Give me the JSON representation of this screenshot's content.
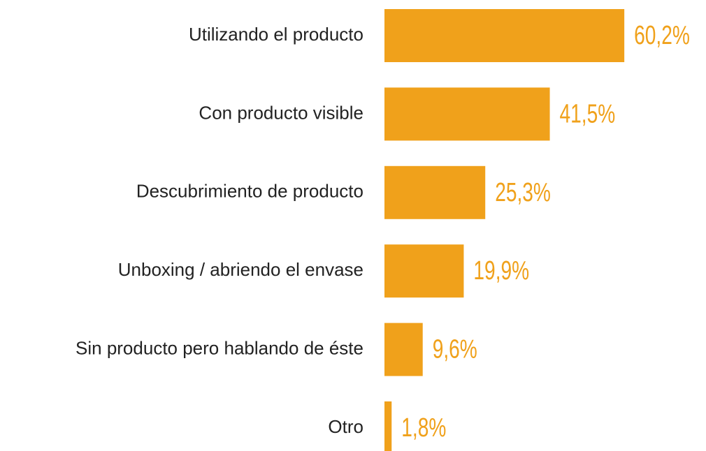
{
  "chart_data": {
    "type": "hbar",
    "categories": [
      "Utilizando el producto",
      "Con producto visible",
      "Descubrimiento de producto",
      "Unboxing / abriendo el envase",
      "Sin producto pero hablando de éste",
      "Otro"
    ],
    "values": [
      60.2,
      41.5,
      25.3,
      19.9,
      9.6,
      1.8
    ],
    "value_labels": [
      "60,2%",
      "41,5%",
      "25,3%",
      "19,9%",
      "9,6%",
      "1,8%"
    ],
    "color": "#f0a11b"
  }
}
